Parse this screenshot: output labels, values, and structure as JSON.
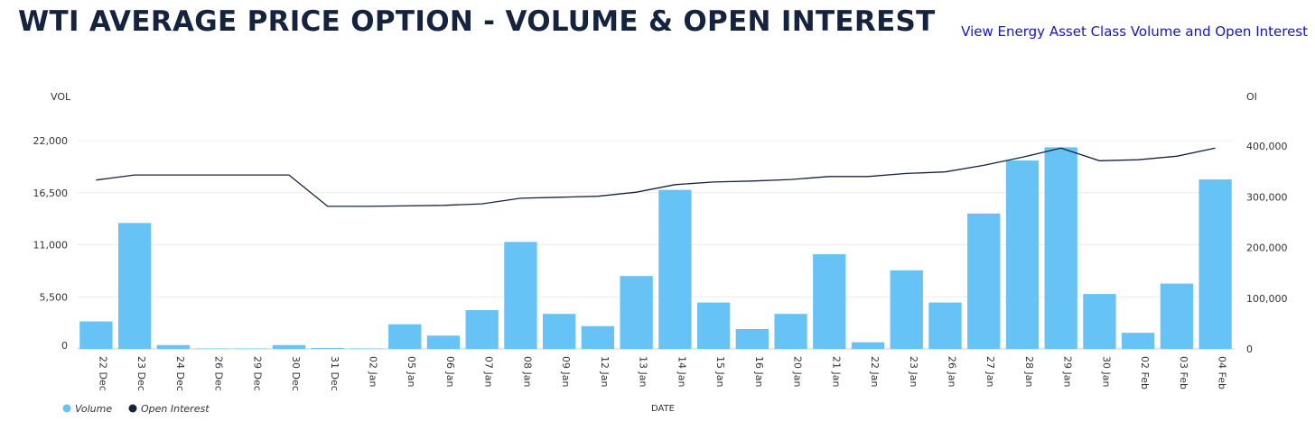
{
  "header": {
    "title": "WTI AVERAGE PRICE OPTION - VOLUME & OPEN INTEREST",
    "link_label": "View Energy Asset Class Volume and Open Interest"
  },
  "colors": {
    "bar": "#67c3f5",
    "line": "#15233f",
    "axis_text": "#333333",
    "grid": "#ececec"
  },
  "chart_data": {
    "type": "bar+line",
    "title": "WTI AVERAGE PRICE OPTION - VOLUME & OPEN INTEREST",
    "xlabel": "DATE",
    "ylabel_left": "VOL",
    "ylabel_right": "OI",
    "categories": [
      "22 Dec",
      "23 Dec",
      "24 Dec",
      "26 Dec",
      "29 Dec",
      "30 Dec",
      "31 Dec",
      "02 Jan",
      "05 Jan",
      "06 Jan",
      "07 Jan",
      "08 Jan",
      "09 Jan",
      "12 Jan",
      "13 Jan",
      "14 Jan",
      "15 Jan",
      "16 Jan",
      "20 Jan",
      "21 Jan",
      "22 Jan",
      "23 Jan",
      "26 Jan",
      "27 Jan",
      "28 Jan",
      "29 Jan",
      "30 Jan",
      "02 Feb",
      "03 Feb",
      "04 Feb"
    ],
    "left_axis": {
      "min": 0,
      "max": 22000,
      "ticks": [
        0,
        5500,
        11000,
        16500,
        22000
      ],
      "tick_labels": [
        "0",
        "5,500",
        "11,000",
        "16,500",
        "22,000"
      ]
    },
    "right_axis": {
      "min": 0,
      "max": 400000,
      "ticks": [
        0,
        100000,
        200000,
        300000,
        400000
      ],
      "tick_labels": [
        "0",
        "100,000",
        "200,000",
        "300,000",
        "400,000"
      ]
    },
    "series": [
      {
        "name": "Volume",
        "type": "bar",
        "axis": "left",
        "values": [
          2900,
          13300,
          400,
          50,
          50,
          400,
          100,
          50,
          2600,
          1400,
          4100,
          11300,
          3700,
          2400,
          7700,
          16800,
          4900,
          2100,
          3700,
          10000,
          700,
          8300,
          4900,
          14300,
          19900,
          21300,
          5800,
          1700,
          6900,
          17900
        ]
      },
      {
        "name": "Open Interest",
        "type": "line",
        "axis": "right",
        "values": [
          333000,
          343000,
          343000,
          343000,
          343000,
          343000,
          281000,
          281000,
          282000,
          283000,
          286000,
          297000,
          299000,
          301000,
          309000,
          324000,
          329000,
          331000,
          334000,
          340000,
          340000,
          346000,
          349000,
          362000,
          378000,
          396000,
          371000,
          373000,
          380000,
          396000
        ]
      }
    ],
    "legend": [
      "Volume",
      "Open Interest"
    ],
    "legend_position": "bottom-left",
    "grid": true
  }
}
